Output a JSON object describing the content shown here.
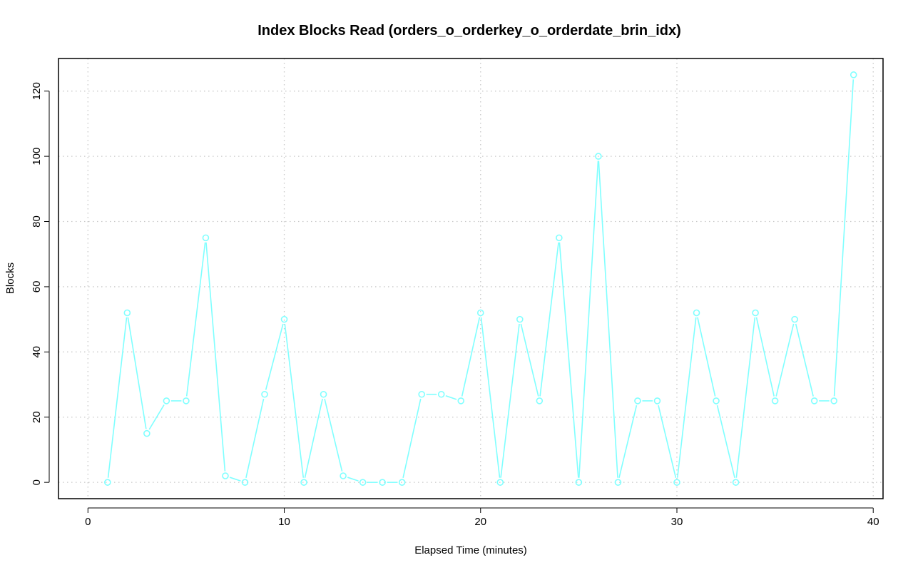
{
  "chart_data": {
    "type": "line",
    "title": "Index Blocks Read (orders_o_orderkey_o_orderdate_brin_idx)",
    "xlabel": "Elapsed Time (minutes)",
    "ylabel": "Blocks",
    "xlim": [
      -1.5,
      40.5
    ],
    "ylim": [
      -5,
      130
    ],
    "x_ticks": [
      0,
      10,
      20,
      30,
      40
    ],
    "y_ticks": [
      0,
      20,
      40,
      60,
      80,
      100,
      120
    ],
    "grid": true,
    "legend": "none",
    "series": [
      {
        "color": "#80ffff",
        "marker": "open-circle",
        "x": [
          1,
          2,
          3,
          4,
          5,
          6,
          7,
          8,
          9,
          10,
          11,
          12,
          13,
          14,
          15,
          16,
          17,
          18,
          19,
          20,
          21,
          22,
          23,
          24,
          25,
          26,
          27,
          28,
          29,
          30,
          31,
          32,
          33,
          34,
          35,
          36,
          37,
          38,
          39
        ],
        "values": [
          0,
          52,
          15,
          25,
          25,
          75,
          2,
          0,
          27,
          50,
          0,
          27,
          2,
          0,
          0,
          0,
          27,
          27,
          25,
          52,
          0,
          50,
          25,
          75,
          0,
          100,
          0,
          25,
          25,
          0,
          52,
          25,
          0,
          52,
          25,
          50,
          25,
          25,
          125
        ]
      }
    ]
  }
}
